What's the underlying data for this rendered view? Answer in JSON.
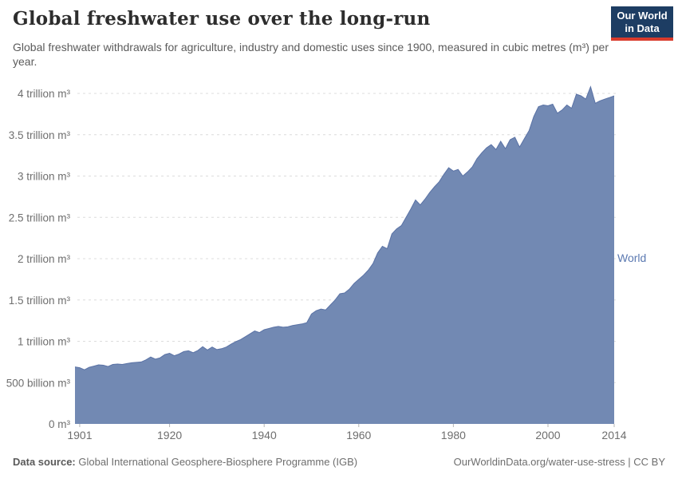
{
  "header": {
    "title": "Global freshwater use over the long-run",
    "subtitle": "Global freshwater withdrawals for agriculture, industry and domestic uses since 1900, measured in cubic metres (m³) per year."
  },
  "logo": {
    "line1": "Our World",
    "line2": "in Data",
    "bg_color": "#1d3d63",
    "stripe_color": "#d93b2c"
  },
  "chart_data": {
    "type": "area",
    "title": "Global freshwater use over the long-run",
    "xlabel": "",
    "ylabel": "",
    "values_unit": "trillion m³ per year",
    "x_start": 1900,
    "x_end": 2014,
    "xticks": [
      1901,
      1920,
      1940,
      1960,
      1980,
      2000,
      2014
    ],
    "yticks": [
      {
        "value": 0,
        "label": "0 m³"
      },
      {
        "value": 0.5,
        "label": "500 billion m³"
      },
      {
        "value": 1,
        "label": "1 trillion m³"
      },
      {
        "value": 1.5,
        "label": "1.5 trillion m³"
      },
      {
        "value": 2,
        "label": "2 trillion m³"
      },
      {
        "value": 2.5,
        "label": "2.5 trillion m³"
      },
      {
        "value": 3,
        "label": "3 trillion m³"
      },
      {
        "value": 3.5,
        "label": "3.5 trillion m³"
      },
      {
        "value": 4,
        "label": "4 trillion m³"
      }
    ],
    "ylim": [
      0,
      4.1
    ],
    "grid": "horizontal-dashed",
    "legend_position": "series label at right edge of area",
    "series": [
      {
        "name": "World",
        "fill_color": "#7289b3",
        "line_color": "#5a72a5",
        "label_color": "#5b79b1",
        "values": [
          0.69,
          0.68,
          0.655,
          0.685,
          0.7,
          0.715,
          0.71,
          0.695,
          0.72,
          0.725,
          0.72,
          0.73,
          0.74,
          0.745,
          0.75,
          0.775,
          0.81,
          0.785,
          0.8,
          0.84,
          0.855,
          0.825,
          0.845,
          0.875,
          0.885,
          0.862,
          0.89,
          0.935,
          0.895,
          0.93,
          0.9,
          0.91,
          0.93,
          0.965,
          0.995,
          1.02,
          1.055,
          1.09,
          1.125,
          1.105,
          1.14,
          1.155,
          1.17,
          1.18,
          1.17,
          1.175,
          1.19,
          1.2,
          1.21,
          1.225,
          1.33,
          1.37,
          1.39,
          1.38,
          1.44,
          1.5,
          1.575,
          1.585,
          1.63,
          1.7,
          1.75,
          1.8,
          1.86,
          1.94,
          2.07,
          2.15,
          2.12,
          2.3,
          2.36,
          2.4,
          2.5,
          2.6,
          2.71,
          2.65,
          2.72,
          2.8,
          2.87,
          2.93,
          3.02,
          3.1,
          3.06,
          3.08,
          3.0,
          3.05,
          3.11,
          3.21,
          3.28,
          3.34,
          3.38,
          3.32,
          3.42,
          3.33,
          3.44,
          3.47,
          3.35,
          3.45,
          3.55,
          3.72,
          3.84,
          3.86,
          3.85,
          3.87,
          3.76,
          3.8,
          3.86,
          3.82,
          3.99,
          3.97,
          3.93,
          4.08,
          3.88,
          3.91,
          3.93,
          3.95,
          3.97
        ]
      }
    ]
  },
  "footer": {
    "source_label": "Data source:",
    "source_text": " Global International Geosphere-Biosphere Programme (IGB)",
    "link_text": "OurWorldinData.org/water-use-stress | CC BY"
  },
  "colors": {
    "grid": "#dcdcdc",
    "tick_text": "#6e6e6e",
    "tick_mark": "#b5b5b5",
    "title_text": "#2d2d2d",
    "subtitle_text": "#5b5b5b"
  }
}
